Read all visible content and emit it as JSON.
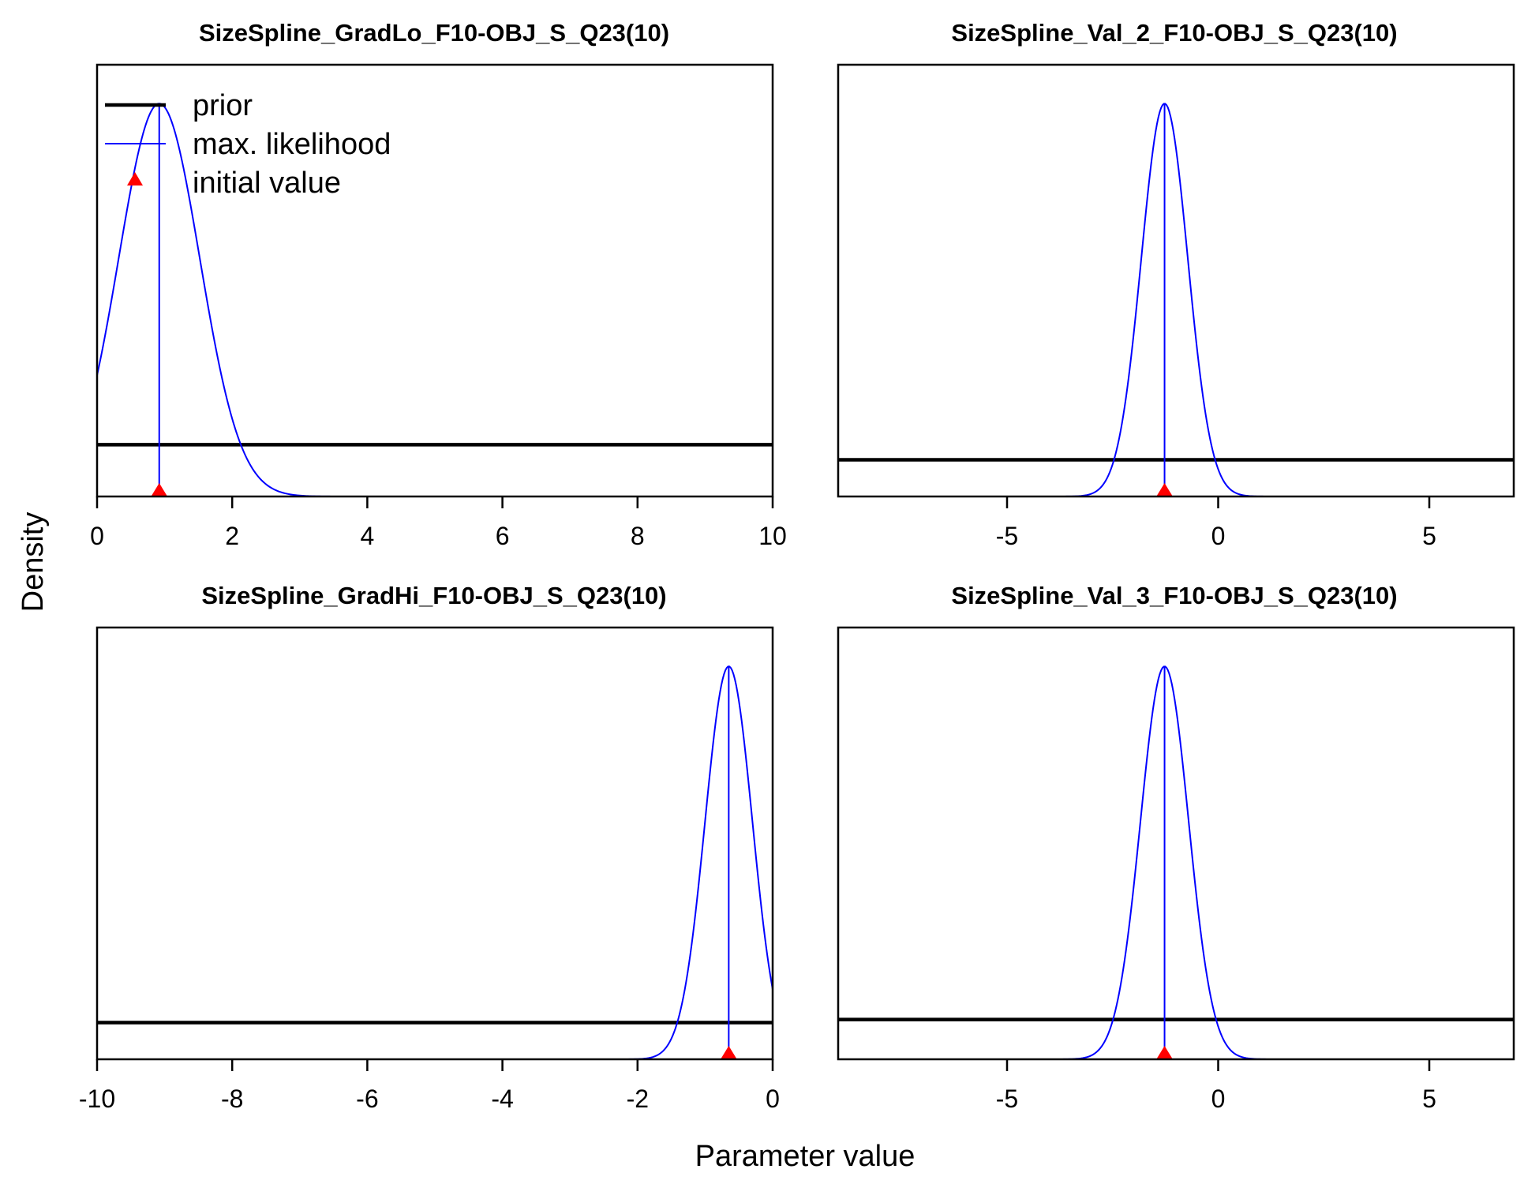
{
  "xlabel": "Parameter value",
  "ylabel": "Density",
  "colors": {
    "prior": "#000000",
    "likelihood": "#0000ff",
    "initial": "#ff0000"
  },
  "legend": {
    "placement": "top-left",
    "prior": "prior",
    "likelihood": "max. likelihood",
    "initial": "initial value"
  },
  "chart_data": [
    {
      "type": "line",
      "title": "SizeSpline_GradLo_F10-OBJ_S_Q23(10)",
      "xlim": [
        0,
        10
      ],
      "xticks": [
        0,
        2,
        4,
        6,
        8,
        10
      ],
      "xtick_labels": [
        "0",
        "2",
        "4",
        "6",
        "8",
        "10"
      ],
      "prior": {
        "type": "uniform",
        "level": 0.12
      },
      "likelihood": {
        "mean": 0.92,
        "sd": 0.6,
        "peak": 0.91
      },
      "mle": 0.92,
      "initial_value": 0.92
    },
    {
      "type": "line",
      "title": "SizeSpline_Val_2_F10-OBJ_S_Q23(10)",
      "xlim": [
        -9,
        7
      ],
      "xticks": [
        -5,
        0,
        5
      ],
      "xtick_labels": [
        "-5",
        "0",
        "5"
      ],
      "prior": {
        "type": "uniform",
        "level": 0.085
      },
      "likelihood": {
        "mean": -1.27,
        "sd": 0.55,
        "peak": 0.91
      },
      "mle": -1.27,
      "initial_value": -1.27
    },
    {
      "type": "line",
      "title": "SizeSpline_GradHi_F10-OBJ_S_Q23(10)",
      "xlim": [
        -10,
        0
      ],
      "xticks": [
        -10,
        -8,
        -6,
        -4,
        -2,
        0
      ],
      "xtick_labels": [
        "-10",
        "-8",
        "-6",
        "-4",
        "-2",
        "0"
      ],
      "prior": {
        "type": "uniform",
        "level": 0.085
      },
      "likelihood": {
        "mean": -0.65,
        "sd": 0.35,
        "peak": 0.91
      },
      "mle": -0.65,
      "initial_value": -0.65
    },
    {
      "type": "line",
      "title": "SizeSpline_Val_3_F10-OBJ_S_Q23(10)",
      "xlim": [
        -9,
        7
      ],
      "xticks": [
        -5,
        0,
        5
      ],
      "xtick_labels": [
        "-5",
        "0",
        "5"
      ],
      "prior": {
        "type": "uniform",
        "level": 0.092
      },
      "likelihood": {
        "mean": -1.27,
        "sd": 0.57,
        "peak": 0.91
      },
      "mle": -1.27,
      "initial_value": -1.27
    }
  ]
}
